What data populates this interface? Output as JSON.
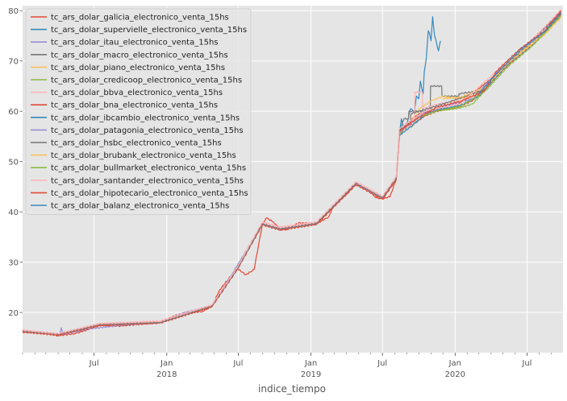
{
  "chart_data": {
    "type": "line",
    "title": "",
    "xlabel": "indice_tiempo",
    "ylabel": "",
    "x_range": [
      "2017-01-01",
      "2020-09-30"
    ],
    "ylim": [
      12,
      81
    ],
    "grid": true,
    "legend_placement": "top-left",
    "background_color": "#e5e5e5",
    "grid_color": "#ffffff",
    "y_ticks": [
      20,
      30,
      40,
      50,
      60,
      70,
      80
    ],
    "x_ticks": [
      {
        "date": "2017-07-01",
        "label": "Jul",
        "sublabel": ""
      },
      {
        "date": "2018-01-01",
        "label": "Jan",
        "sublabel": "2018"
      },
      {
        "date": "2018-07-01",
        "label": "Jul",
        "sublabel": ""
      },
      {
        "date": "2019-01-01",
        "label": "Jan",
        "sublabel": "2019"
      },
      {
        "date": "2019-07-01",
        "label": "Jul",
        "sublabel": ""
      },
      {
        "date": "2020-01-01",
        "label": "Jan",
        "sublabel": "2020"
      },
      {
        "date": "2020-07-01",
        "label": "Jul",
        "sublabel": ""
      }
    ],
    "series": [
      {
        "name": "tc_ars_dolar_galicia_electronico_venta_15hs",
        "color": "#e24a33",
        "x": [
          "2017-01-01",
          "2017-02-15",
          "2017-04-01",
          "2017-05-15",
          "2017-06-15",
          "2017-07-15",
          "2017-09-01",
          "2017-10-15",
          "2017-12-15",
          "2018-01-15",
          "2018-02-15",
          "2018-04-01",
          "2018-04-25",
          "2018-05-15",
          "2018-06-15",
          "2018-06-29",
          "2018-07-20",
          "2018-08-10",
          "2018-08-31",
          "2018-09-10",
          "2018-09-28",
          "2018-10-15",
          "2018-11-01",
          "2018-12-01",
          "2019-01-15",
          "2019-02-15",
          "2019-03-01",
          "2019-04-01",
          "2019-04-25",
          "2019-05-20",
          "2019-06-15",
          "2019-07-01",
          "2019-07-20",
          "2019-08-05",
          "2019-08-13",
          "2019-08-30",
          "2019-09-15",
          "2019-10-15",
          "2019-11-15",
          "2019-12-15",
          "2020-01-15",
          "2020-02-15",
          "2020-03-15",
          "2020-04-15",
          "2020-05-15",
          "2020-06-15",
          "2020-07-15",
          "2020-08-15",
          "2020-09-25"
        ],
        "y": [
          16.2,
          15.9,
          15.4,
          15.8,
          16.6,
          17.5,
          17.3,
          17.6,
          18.0,
          19.2,
          19.9,
          20.2,
          21.2,
          24.5,
          27.5,
          28.7,
          27.5,
          28.5,
          37.5,
          38.8,
          38.0,
          36.5,
          36.5,
          37.8,
          37.6,
          39.0,
          41.5,
          43.5,
          45.5,
          44.8,
          42.8,
          42.6,
          43.0,
          46.5,
          55.0,
          57.5,
          57.3,
          59.0,
          60.0,
          60.5,
          61.0,
          62.2,
          64.5,
          67.5,
          69.8,
          72.0,
          73.5,
          75.5,
          79.5
        ]
      },
      {
        "name": "tc_ars_dolar_supervielle_electronico_venta_15hs",
        "color": "#348abd",
        "x": [
          "2019-08-13",
          "2019-08-18",
          "2019-08-25",
          "2019-09-01",
          "2019-09-10",
          "2019-09-20",
          "2019-09-25",
          "2019-10-01",
          "2019-10-05",
          "2019-10-12",
          "2019-10-15",
          "2019-10-20",
          "2019-10-25",
          "2019-10-28",
          "2019-11-01",
          "2019-11-05",
          "2019-11-10",
          "2019-11-15",
          "2019-11-20",
          "2019-11-25"
        ],
        "y": [
          55.5,
          58.5,
          56.5,
          57.5,
          60.5,
          60.0,
          63.0,
          62.5,
          66.0,
          63.5,
          68.0,
          70.5,
          76.0,
          75.5,
          74.0,
          78.8,
          75.0,
          73.5,
          72.0,
          74.0
        ]
      },
      {
        "name": "tc_ars_dolar_itau_electronico_venta_15hs",
        "color": "#988ed5",
        "x": [
          "2017-01-01",
          "2017-03-01",
          "2017-04-05",
          "2017-04-09",
          "2017-04-13",
          "2017-06-15",
          "2017-09-01",
          "2017-12-15",
          "2018-02-15",
          "2018-04-25",
          "2018-06-15",
          "2018-08-31",
          "2018-10-15",
          "2019-01-15",
          "2019-04-25",
          "2019-07-01",
          "2019-08-05"
        ],
        "y": [
          16.3,
          15.9,
          15.6,
          17.0,
          15.6,
          16.7,
          17.4,
          18.1,
          20.0,
          21.3,
          27.6,
          37.6,
          36.6,
          37.7,
          45.6,
          42.7,
          46.6
        ]
      },
      {
        "name": "tc_ars_dolar_macro_electronico_venta_15hs",
        "color": "#777777",
        "x": [
          "2019-08-13",
          "2019-08-25",
          "2019-09-05",
          "2019-09-06",
          "2019-10-30",
          "2019-10-31",
          "2019-11-28",
          "2019-11-29",
          "2020-01-10",
          "2020-01-11",
          "2020-03-01",
          "2020-04-15",
          "2020-05-15",
          "2020-06-15",
          "2020-07-15",
          "2020-08-15",
          "2020-09-25"
        ],
        "y": [
          56.0,
          58.5,
          58.5,
          60.0,
          60.0,
          65.0,
          65.0,
          63.0,
          63.0,
          63.5,
          64.0,
          67.0,
          70.0,
          72.2,
          74.0,
          75.8,
          80.0
        ]
      },
      {
        "name": "tc_ars_dolar_piano_electronico_venta_15hs",
        "color": "#fbc15e",
        "x": [
          "2019-08-13",
          "2019-09-01",
          "2019-10-01",
          "2019-11-01",
          "2019-12-01",
          "2020-01-10",
          "2020-02-15",
          "2020-03-15",
          "2020-04-15",
          "2020-05-15",
          "2020-06-15",
          "2020-07-15",
          "2020-08-15",
          "2020-09-25"
        ],
        "y": [
          55.0,
          57.0,
          60.5,
          62.0,
          63.0,
          62.5,
          63.0,
          64.5,
          67.0,
          69.5,
          71.8,
          73.5,
          75.2,
          78.8
        ]
      },
      {
        "name": "tc_ars_dolar_credicoop_electronico_venta_15hs",
        "color": "#8eba42",
        "x": [
          "2019-08-13",
          "2019-08-25",
          "2019-09-15",
          "2019-10-01",
          "2019-10-15",
          "2019-11-01",
          "2019-11-15",
          "2019-12-01",
          "2020-01-01",
          "2020-01-20",
          "2020-02-15",
          "2020-03-15"
        ],
        "y": [
          55.5,
          56.5,
          57.0,
          59.5,
          59.8,
          60.2,
          60.5,
          60.2,
          60.5,
          60.8,
          61.5,
          64.0
        ]
      },
      {
        "name": "tc_ars_dolar_bbva_electronico_venta_15hs",
        "color": "#ffb5b8",
        "x": [
          "2017-01-01",
          "2017-04-01",
          "2017-07-15",
          "2017-12-15",
          "2018-04-25",
          "2018-06-29",
          "2018-08-31",
          "2018-10-15",
          "2019-01-15",
          "2019-04-25",
          "2019-07-01",
          "2019-08-05",
          "2019-08-13",
          "2019-09-20",
          "2019-09-21",
          "2019-10-10",
          "2019-10-11",
          "2019-11-20",
          "2020-02-15",
          "2020-05-15",
          "2020-09-25"
        ],
        "y": [
          16.4,
          15.6,
          17.7,
          18.2,
          21.4,
          28.9,
          37.8,
          36.8,
          37.9,
          45.8,
          43.0,
          46.8,
          56.0,
          57.5,
          63.8,
          63.8,
          60.5,
          61.5,
          62.5,
          70.0,
          79.6
        ]
      },
      {
        "name": "tc_ars_dolar_bna_electronico_venta_15hs",
        "color": "#e24a33",
        "x": [
          "2017-01-01",
          "2017-04-01",
          "2017-07-15",
          "2017-12-15",
          "2018-04-25",
          "2018-06-29",
          "2018-08-31",
          "2018-10-15",
          "2019-01-15",
          "2019-04-25",
          "2019-07-01",
          "2019-08-05",
          "2019-08-13",
          "2019-10-01",
          "2020-01-01",
          "2020-04-15",
          "2020-07-15",
          "2020-09-25"
        ],
        "y": [
          16.1,
          15.5,
          17.4,
          17.9,
          21.1,
          28.6,
          37.4,
          36.4,
          37.5,
          45.4,
          42.5,
          46.4,
          55.8,
          59.5,
          60.8,
          67.3,
          73.3,
          79.3
        ]
      },
      {
        "name": "tc_ars_dolar_ibcambio_electronico_venta_15hs",
        "color": "#348abd",
        "x": [
          "2019-08-13",
          "2019-09-15",
          "2019-10-15",
          "2019-11-15",
          "2019-12-15",
          "2020-01-15",
          "2020-03-01",
          "2020-05-15",
          "2020-07-15",
          "2020-09-25"
        ],
        "y": [
          55.2,
          57.2,
          59.2,
          60.3,
          60.7,
          61.2,
          63.0,
          69.5,
          73.2,
          79.0
        ]
      },
      {
        "name": "tc_ars_dolar_patagonia_electronico_venta_15hs",
        "color": "#988ed5",
        "x": [
          "2019-08-13",
          "2019-09-15",
          "2019-10-15",
          "2019-12-15",
          "2020-02-15",
          "2020-05-15",
          "2020-07-15",
          "2020-09-25"
        ],
        "y": [
          55.8,
          57.8,
          59.8,
          61.2,
          62.5,
          70.2,
          74.0,
          79.8
        ]
      },
      {
        "name": "tc_ars_dolar_hsbc_electronico_venta_15hs",
        "color": "#777777",
        "x": [
          "2017-01-01",
          "2017-04-01",
          "2017-07-15",
          "2017-12-15",
          "2018-04-25",
          "2018-06-29",
          "2018-08-31",
          "2018-10-15",
          "2019-01-15",
          "2019-04-25",
          "2019-07-01",
          "2019-08-05",
          "2019-08-13",
          "2019-09-10",
          "2019-09-11",
          "2019-12-15",
          "2020-03-15",
          "2020-06-15",
          "2020-09-25"
        ],
        "y": [
          16.3,
          15.7,
          17.6,
          18.0,
          21.3,
          28.7,
          37.6,
          36.6,
          37.7,
          45.7,
          42.8,
          46.7,
          56.2,
          58.0,
          59.5,
          61.8,
          64.3,
          72.0,
          79.7
        ]
      },
      {
        "name": "tc_ars_dolar_brubank_electronico_venta_15hs",
        "color": "#fbc15e",
        "x": [
          "2019-12-01",
          "2020-01-15",
          "2020-03-15",
          "2020-05-15",
          "2020-07-15",
          "2020-09-25"
        ],
        "y": [
          62.5,
          62.8,
          64.6,
          69.6,
          73.4,
          78.6
        ]
      },
      {
        "name": "tc_ars_dolar_bullmarket_electronico_venta_15hs",
        "color": "#8eba42",
        "x": [
          "2019-10-01",
          "2019-11-15",
          "2020-01-15",
          "2020-03-15",
          "2020-05-15",
          "2020-07-15",
          "2020-09-25"
        ],
        "y": [
          58.8,
          60.0,
          61.0,
          63.8,
          69.0,
          73.0,
          79.0
        ]
      },
      {
        "name": "tc_ars_dolar_santander_electronico_venta_15hs",
        "color": "#ffb5b8",
        "x": [
          "2017-01-01",
          "2017-04-01",
          "2017-07-15",
          "2017-12-15",
          "2018-04-25",
          "2018-06-29",
          "2018-08-31",
          "2018-10-15",
          "2019-01-15",
          "2019-04-25",
          "2019-07-01",
          "2019-08-05",
          "2019-08-13",
          "2019-10-15",
          "2020-01-15",
          "2020-04-15",
          "2020-07-15",
          "2020-09-25"
        ],
        "y": [
          16.5,
          15.8,
          17.8,
          18.3,
          21.5,
          29.0,
          38.0,
          37.0,
          38.0,
          46.0,
          43.1,
          47.0,
          56.5,
          60.0,
          61.5,
          68.0,
          74.2,
          80.2
        ]
      },
      {
        "name": "tc_ars_dolar_hipotecario_electronico_venta_15hs",
        "color": "#e24a33",
        "x": [
          "2019-08-13",
          "2019-09-15",
          "2019-11-15",
          "2020-01-15",
          "2020-03-15",
          "2020-04-15",
          "2020-06-15",
          "2020-08-15",
          "2020-09-25"
        ],
        "y": [
          56.0,
          58.0,
          60.8,
          62.0,
          64.0,
          68.0,
          72.5,
          76.0,
          80.0
        ]
      },
      {
        "name": "tc_ars_dolar_balanz_electronico_venta_15hs",
        "color": "#348abd",
        "x": [
          "2020-03-01",
          "2020-04-15",
          "2020-06-15",
          "2020-08-15",
          "2020-09-25"
        ],
        "y": [
          63.5,
          67.5,
          72.3,
          75.8,
          79.5
        ]
      }
    ]
  }
}
